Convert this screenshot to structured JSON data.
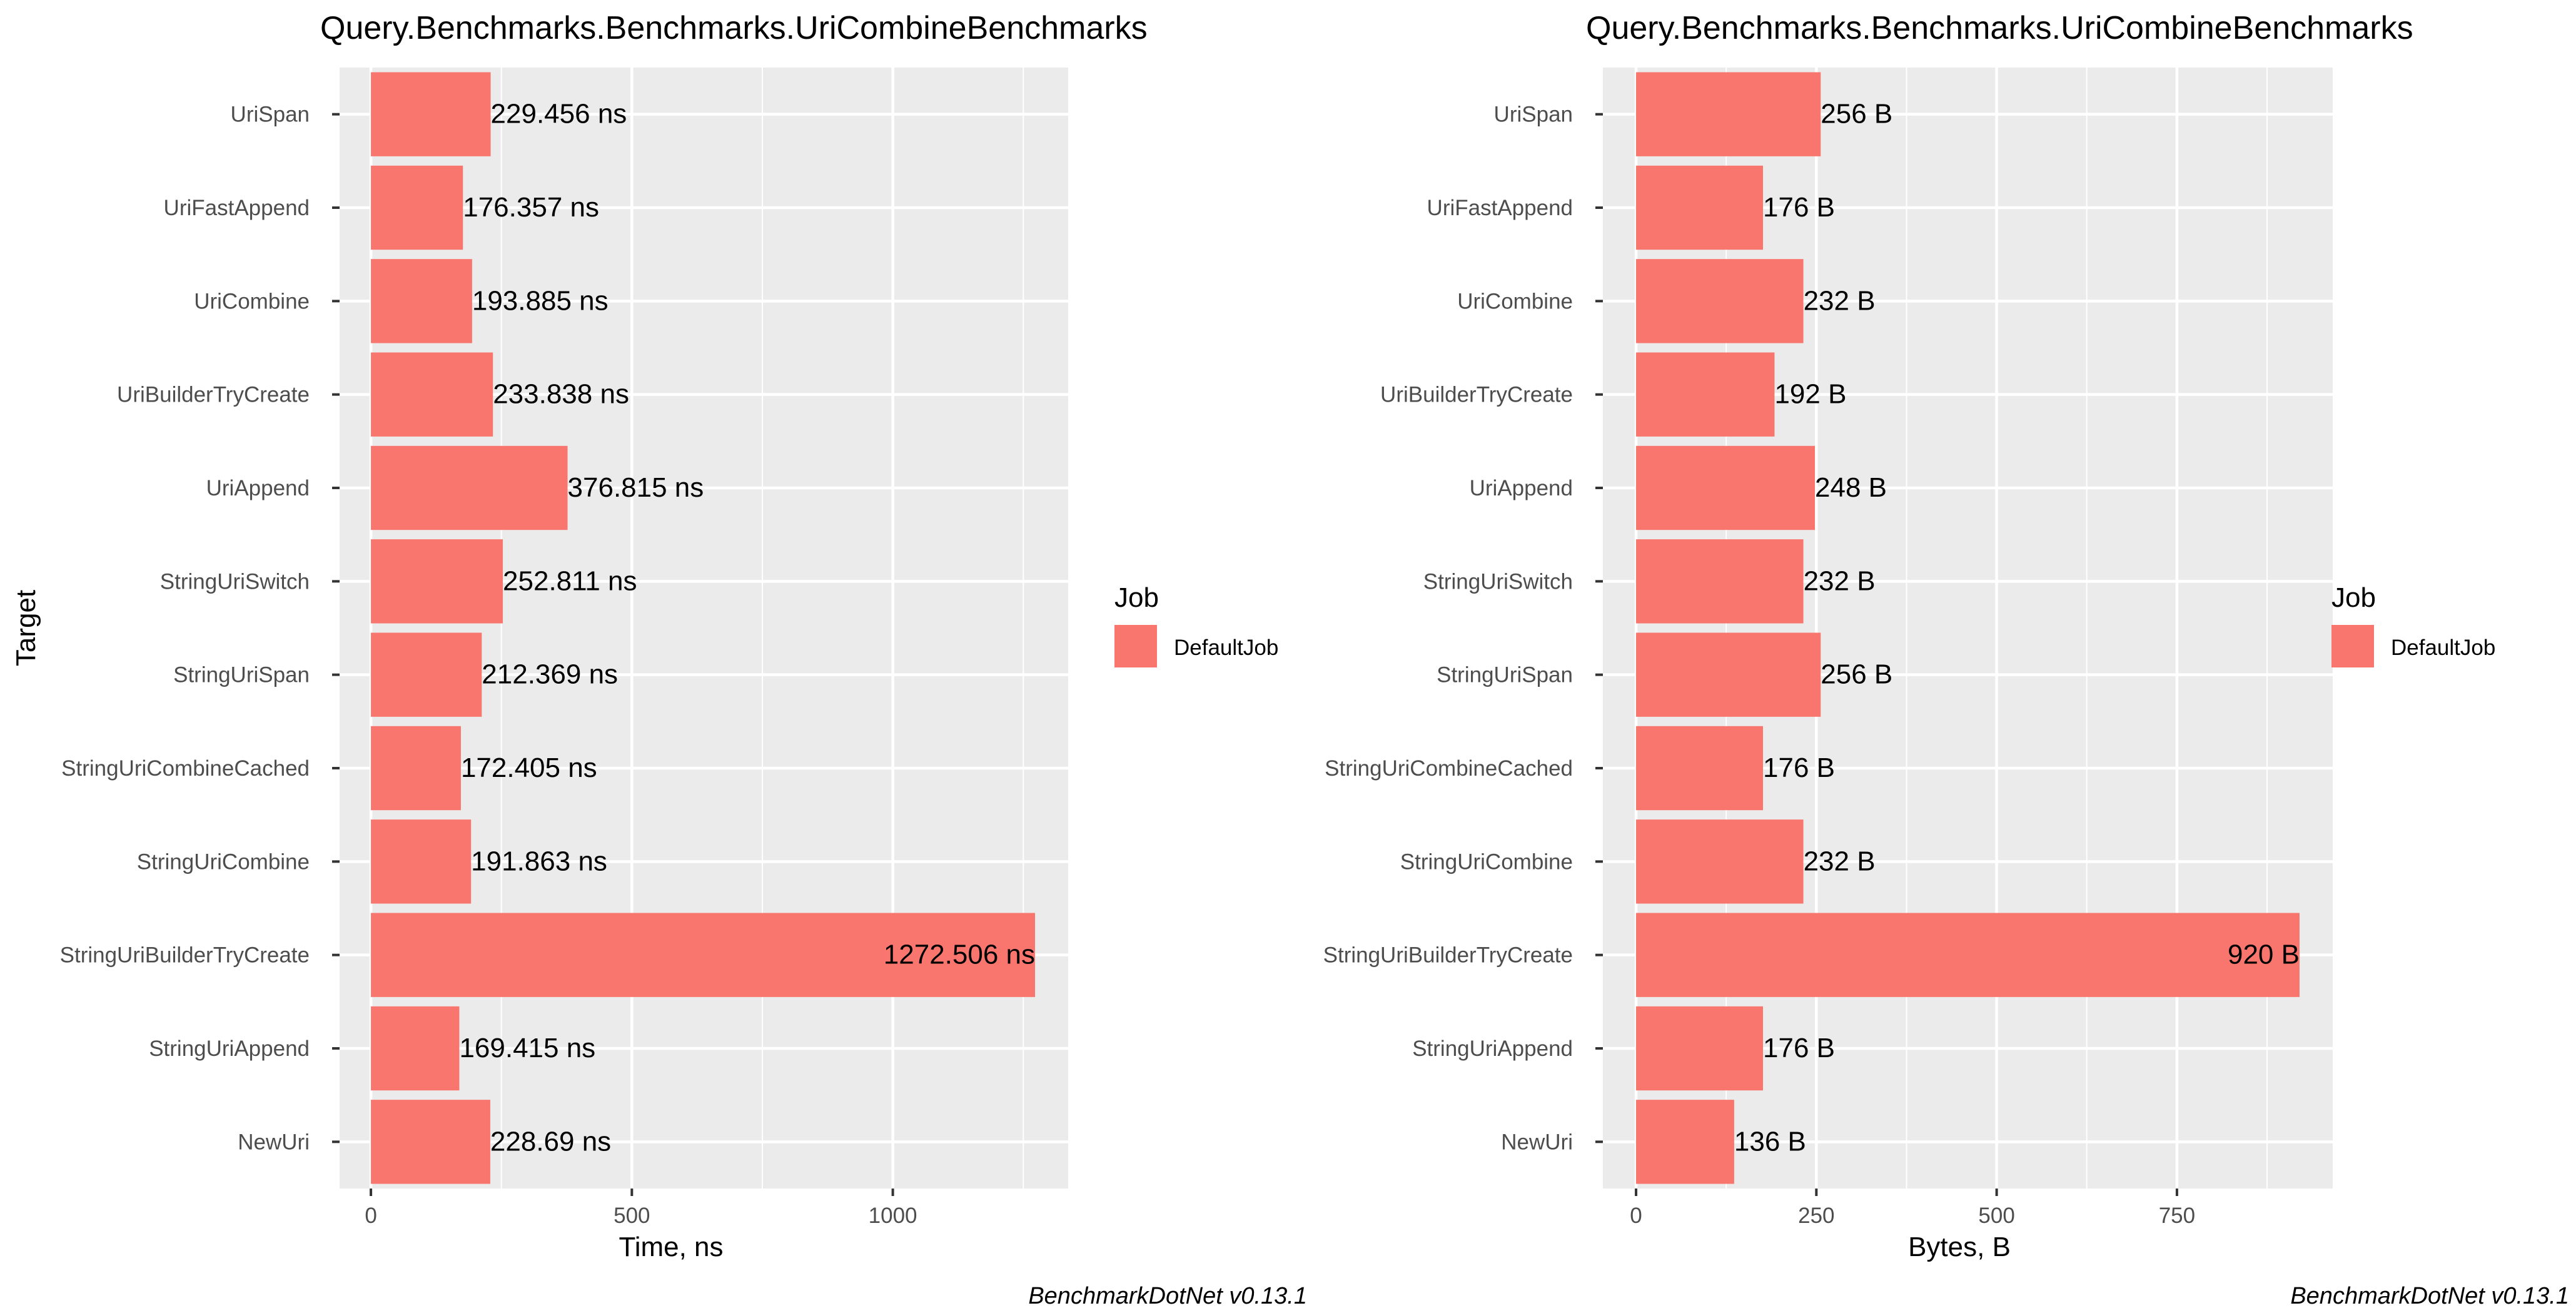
{
  "chart_data": [
    {
      "type": "bar",
      "orientation": "horizontal",
      "title": "Query.Benchmarks.Benchmarks.UriCombineBenchmarks",
      "xlabel": "Time, ns",
      "ylabel": "Target",
      "footer": "BenchmarkDotNet v0.13.1",
      "legend": {
        "title": "Job",
        "entries": [
          "DefaultJob"
        ],
        "placement": "right"
      },
      "xlim": [
        -60,
        1336
      ],
      "xticks": [
        0,
        500,
        1000
      ],
      "xtick_labels": [
        "0",
        "500",
        "1000"
      ],
      "categories": [
        "UriSpan",
        "UriFastAppend",
        "UriCombine",
        "UriBuilderTryCreate",
        "UriAppend",
        "StringUriSwitch",
        "StringUriSpan",
        "StringUriCombineCached",
        "StringUriCombine",
        "StringUriBuilderTryCreate",
        "StringUriAppend",
        "NewUri"
      ],
      "series": [
        {
          "name": "DefaultJob",
          "values": [
            229.456,
            176.357,
            193.885,
            233.838,
            376.815,
            252.811,
            212.369,
            172.405,
            191.863,
            1272.506,
            169.415,
            228.69
          ],
          "labels": [
            "229.456 ns",
            "176.357 ns",
            "193.885 ns",
            "233.838 ns",
            "376.815 ns",
            "252.811 ns",
            "212.369 ns",
            "172.405 ns",
            "191.863 ns",
            "1272.506 ns",
            "169.415 ns",
            "228.69 ns"
          ]
        }
      ],
      "grid": true,
      "panel_color": "#EBEBEB",
      "bar_color": "#F8766D"
    },
    {
      "type": "bar",
      "orientation": "horizontal",
      "title": "Query.Benchmarks.Benchmarks.UriCombineBenchmarks",
      "xlabel": "Bytes, B",
      "ylabel": "",
      "footer": "BenchmarkDotNet v0.13.1",
      "legend": {
        "title": "Job",
        "entries": [
          "DefaultJob"
        ],
        "placement": "right"
      },
      "xlim": [
        -46,
        966
      ],
      "xticks": [
        0,
        250,
        500,
        750
      ],
      "xtick_labels": [
        "0",
        "250",
        "500",
        "750"
      ],
      "categories": [
        "UriSpan",
        "UriFastAppend",
        "UriCombine",
        "UriBuilderTryCreate",
        "UriAppend",
        "StringUriSwitch",
        "StringUriSpan",
        "StringUriCombineCached",
        "StringUriCombine",
        "StringUriBuilderTryCreate",
        "StringUriAppend",
        "NewUri"
      ],
      "series": [
        {
          "name": "DefaultJob",
          "values": [
            256,
            176,
            232,
            192,
            248,
            232,
            256,
            176,
            232,
            920,
            176,
            136
          ],
          "labels": [
            "256 B",
            "176 B",
            "232 B",
            "192 B",
            "248 B",
            "232 B",
            "256 B",
            "176 B",
            "232 B",
            "920 B",
            "176 B",
            "136 B"
          ]
        }
      ],
      "grid": true,
      "panel_color": "#EBEBEB",
      "bar_color": "#F8766D"
    }
  ]
}
